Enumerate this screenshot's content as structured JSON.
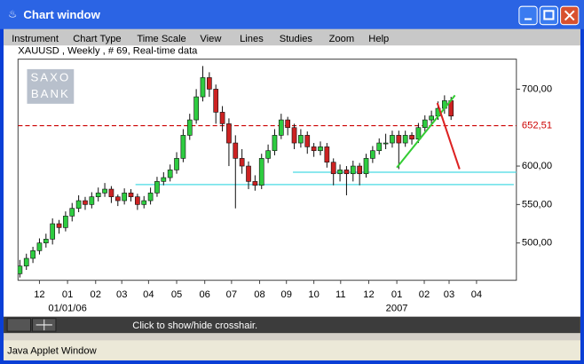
{
  "window": {
    "title": "Chart window",
    "menu": [
      "Instrument",
      "Chart Type",
      "Time Scale",
      "View",
      "Lines",
      "Studies",
      "Zoom",
      "Help"
    ]
  },
  "chart": {
    "type": "candlestick",
    "header": "XAUUSD , Weekly , # 69, Real-time data",
    "logo": [
      "SAXO",
      "BANK"
    ],
    "up_color": "#2ecc40",
    "down_color": "#cc2222",
    "candles": [
      [
        460,
        478,
        455,
        470
      ],
      [
        470,
        486,
        465,
        480
      ],
      [
        480,
        495,
        474,
        490
      ],
      [
        490,
        506,
        485,
        500
      ],
      [
        500,
        512,
        494,
        505
      ],
      [
        505,
        532,
        498,
        525
      ],
      [
        525,
        530,
        512,
        520
      ],
      [
        520,
        541,
        515,
        535
      ],
      [
        535,
        552,
        528,
        545
      ],
      [
        545,
        562,
        540,
        555
      ],
      [
        555,
        560,
        543,
        550
      ],
      [
        550,
        566,
        545,
        560
      ],
      [
        560,
        572,
        554,
        565
      ],
      [
        565,
        578,
        560,
        570
      ],
      [
        570,
        574,
        552,
        560
      ],
      [
        560,
        563,
        548,
        555
      ],
      [
        555,
        571,
        550,
        565
      ],
      [
        565,
        570,
        554,
        560
      ],
      [
        560,
        564,
        543,
        550
      ],
      [
        550,
        561,
        545,
        555
      ],
      [
        555,
        572,
        550,
        565
      ],
      [
        565,
        586,
        560,
        580
      ],
      [
        580,
        592,
        575,
        585
      ],
      [
        585,
        602,
        580,
        595
      ],
      [
        595,
        618,
        590,
        610
      ],
      [
        610,
        648,
        605,
        640
      ],
      [
        640,
        668,
        634,
        660
      ],
      [
        660,
        700,
        655,
        690
      ],
      [
        690,
        730,
        684,
        715
      ],
      [
        715,
        722,
        690,
        700
      ],
      [
        700,
        706,
        655,
        670
      ],
      [
        670,
        678,
        645,
        655
      ],
      [
        655,
        662,
        600,
        630
      ],
      [
        630,
        640,
        545,
        610
      ],
      [
        610,
        622,
        590,
        600
      ],
      [
        600,
        606,
        570,
        580
      ],
      [
        580,
        588,
        568,
        575
      ],
      [
        575,
        616,
        570,
        610
      ],
      [
        610,
        628,
        604,
        620
      ],
      [
        620,
        648,
        614,
        640
      ],
      [
        640,
        668,
        635,
        660
      ],
      [
        660,
        664,
        640,
        650
      ],
      [
        650,
        655,
        622,
        630
      ],
      [
        630,
        648,
        624,
        640
      ],
      [
        640,
        645,
        616,
        625
      ],
      [
        625,
        630,
        612,
        620
      ],
      [
        620,
        632,
        614,
        625
      ],
      [
        625,
        630,
        598,
        605
      ],
      [
        605,
        610,
        575,
        590
      ],
      [
        590,
        602,
        580,
        595
      ],
      [
        595,
        600,
        562,
        590
      ],
      [
        590,
        607,
        580,
        600
      ],
      [
        600,
        604,
        575,
        590
      ],
      [
        590,
        616,
        585,
        610
      ],
      [
        610,
        626,
        604,
        620
      ],
      [
        620,
        636,
        615,
        630
      ],
      [
        630,
        642,
        622,
        630
      ],
      [
        630,
        646,
        624,
        640
      ],
      [
        640,
        646,
        596,
        630
      ],
      [
        630,
        646,
        625,
        640
      ],
      [
        640,
        644,
        628,
        635
      ],
      [
        635,
        656,
        630,
        650
      ],
      [
        650,
        666,
        645,
        660
      ],
      [
        660,
        672,
        654,
        665
      ],
      [
        665,
        684,
        660,
        675
      ],
      [
        675,
        692,
        668,
        685
      ],
      [
        685,
        690,
        660,
        665
      ]
    ],
    "xlim": [
      -0.28,
      76
    ],
    "ylim": [
      451.5,
      739
    ],
    "yticks": [
      {
        "value": 500,
        "label": "500,00"
      },
      {
        "value": 550,
        "label": "550,00"
      },
      {
        "value": 600,
        "label": "600,00"
      },
      {
        "value": 700,
        "label": "700,00"
      }
    ],
    "xticks": [
      {
        "value": 3.0,
        "label": "12"
      },
      {
        "value": 7.3,
        "label": "01"
      },
      {
        "value": 11.6,
        "label": "02"
      },
      {
        "value": 15.6,
        "label": "03"
      },
      {
        "value": 19.7,
        "label": "04"
      },
      {
        "value": 24.0,
        "label": "05"
      },
      {
        "value": 28.3,
        "label": "06"
      },
      {
        "value": 32.4,
        "label": "07"
      },
      {
        "value": 36.7,
        "label": "08"
      },
      {
        "value": 40.8,
        "label": "09"
      },
      {
        "value": 45.0,
        "label": "10"
      },
      {
        "value": 49.1,
        "label": "11"
      },
      {
        "value": 53.4,
        "label": "12"
      },
      {
        "value": 57.7,
        "label": "01"
      },
      {
        "value": 61.9,
        "label": "02"
      },
      {
        "value": 65.7,
        "label": "03"
      },
      {
        "value": 69.9,
        "label": "04"
      }
    ],
    "xsublabels": [
      {
        "value": 7.3,
        "label": "01/01/06"
      },
      {
        "value": 57.7,
        "label": "2007"
      }
    ],
    "reference_line": {
      "value": 652.51,
      "label": "652,51",
      "color": "#cc0000"
    },
    "support_lines": [
      {
        "from": 41.8,
        "to": 76,
        "value": 592,
        "color": "#66e0e8"
      },
      {
        "from": 17.7,
        "to": 75.6,
        "value": 576,
        "color": "#66e0e8"
      }
    ],
    "trend_lines": [
      {
        "x": [
          57.7,
          66.6
        ],
        "y": [
          598,
          692
        ],
        "color": "#33cc33"
      },
      {
        "x": [
          63.9,
          67.3
        ],
        "y": [
          682,
          596
        ],
        "color": "#dd2222"
      }
    ]
  },
  "status": {
    "hint": "Click to show/hide crosshair.",
    "applet": "Java Applet Window"
  }
}
